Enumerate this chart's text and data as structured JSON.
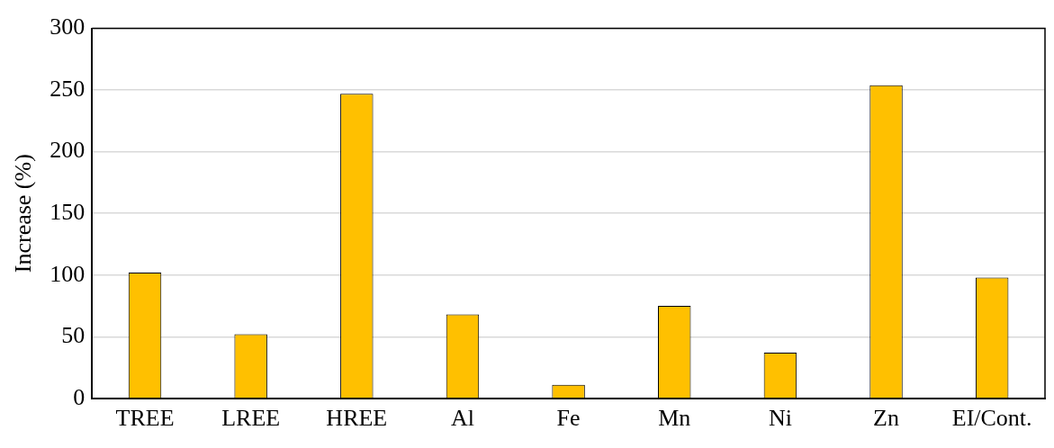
{
  "chart_data": {
    "type": "bar",
    "ylabel": "Increase (%)",
    "categories": [
      "TREE",
      "LREE",
      "HREE",
      "Al",
      "Fe",
      "Mn",
      "Ni",
      "Zn",
      "EI/Cont."
    ],
    "values": [
      102,
      52,
      247,
      68,
      11,
      75,
      37,
      254,
      98
    ],
    "color": "#ffc000",
    "ylim": [
      0,
      300
    ],
    "yticks": [
      0,
      50,
      100,
      150,
      200,
      250,
      300
    ],
    "grid": "y",
    "legend": false
  }
}
